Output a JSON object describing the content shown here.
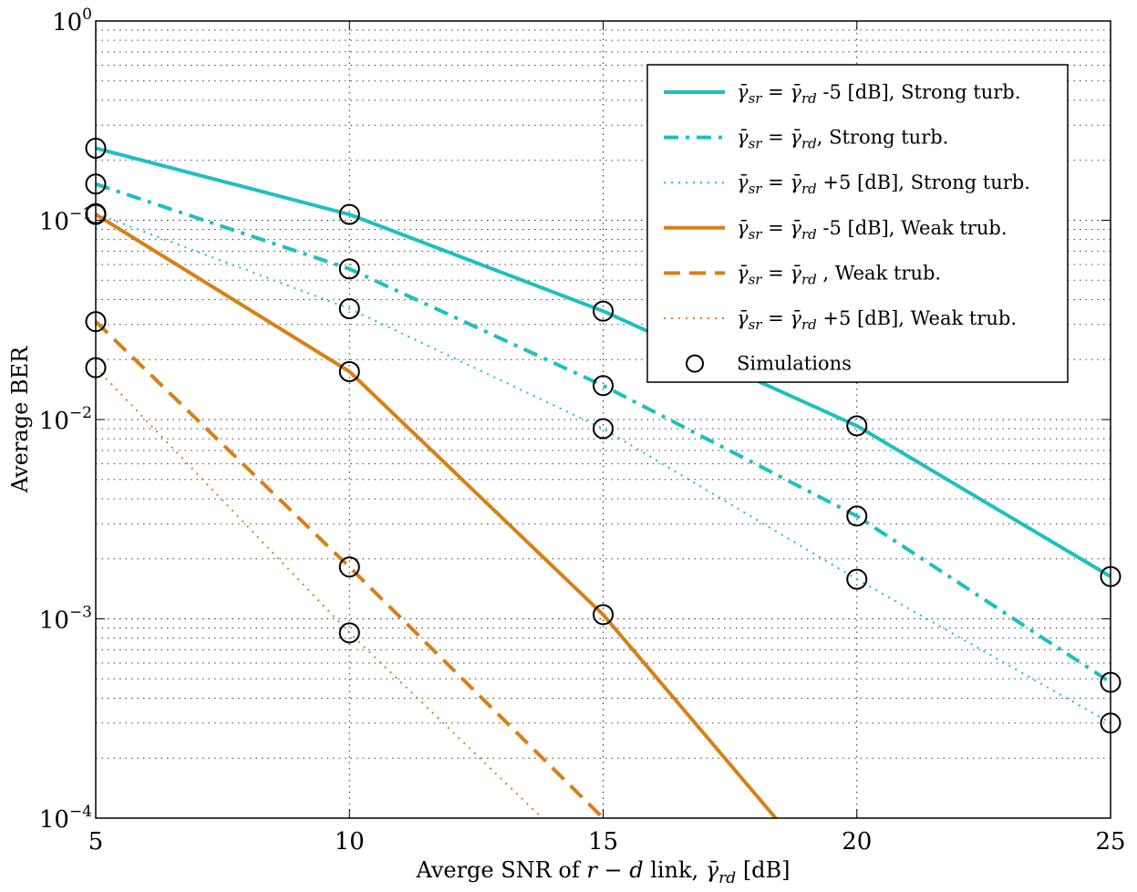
{
  "chart_data": {
    "type": "line",
    "x_scale": "linear",
    "y_scale": "log",
    "xlabel": "Averge SNR of r − d link, γ̄rd [dB]",
    "ylabel": "Average BER",
    "xlim": [
      5,
      25
    ],
    "ylim": [
      0.0001,
      1
    ],
    "x_ticks": [
      5,
      10,
      15,
      20,
      25
    ],
    "y_ticks": [
      {
        "value": 0.0001,
        "base": "10",
        "exp": "−4"
      },
      {
        "value": 0.001,
        "base": "10",
        "exp": "−3"
      },
      {
        "value": 0.01,
        "base": "10",
        "exp": "−2"
      },
      {
        "value": 0.1,
        "base": "10",
        "exp": "−1"
      },
      {
        "value": 1,
        "base": "10",
        "exp": "0"
      }
    ],
    "grid": true,
    "legend_position": "top-right",
    "series": [
      {
        "name": "γ̄sr = γ̄rd -5 [dB], Strong turb.",
        "color": "#1fbfbf",
        "style": "solid",
        "x": [
          5,
          10,
          15,
          20,
          25
        ],
        "y": [
          0.23,
          0.107,
          0.035,
          0.0093,
          0.00163
        ]
      },
      {
        "name": "γ̄sr = γ̄rd, Strong turb.",
        "color": "#1fbfbf",
        "style": "dashdot",
        "x": [
          5,
          10,
          15,
          20,
          25
        ],
        "y": [
          0.152,
          0.057,
          0.0148,
          0.00328,
          0.00048
        ]
      },
      {
        "name": "γ̄sr = γ̄rd +5 [dB], Strong turb.",
        "color": "#1fbfbf",
        "style": "dotted",
        "x": [
          5,
          10,
          15,
          20,
          25
        ],
        "y": [
          0.108,
          0.036,
          0.009,
          0.00158,
          0.0003
        ]
      },
      {
        "name": "γ̄sr = γ̄rd -5 [dB], Weak trub.",
        "color": "#d97f16",
        "style": "solid",
        "x": [
          5,
          10,
          15,
          18.4
        ],
        "y": [
          0.107,
          0.0174,
          0.00105,
          0.0001
        ]
      },
      {
        "name": "γ̄sr = γ̄rd , Weak trub.",
        "color": "#d97f16",
        "style": "dashed",
        "x": [
          5,
          10,
          15
        ],
        "y": [
          0.031,
          0.00182,
          0.0001
        ]
      },
      {
        "name": "γ̄sr = γ̄rd +5 [dB], Weak trub.",
        "color": "#d97f16",
        "style": "dotted",
        "x": [
          5,
          10,
          13.8
        ],
        "y": [
          0.0182,
          0.00085,
          0.0001
        ]
      }
    ],
    "simulations": {
      "name": "Simulations",
      "marker": "circle",
      "points": [
        [
          5,
          0.23
        ],
        [
          5,
          0.152
        ],
        [
          5,
          0.108
        ],
        [
          5,
          0.107
        ],
        [
          5,
          0.031
        ],
        [
          5,
          0.0182
        ],
        [
          10,
          0.107
        ],
        [
          10,
          0.057
        ],
        [
          10,
          0.036
        ],
        [
          10,
          0.0174
        ],
        [
          10,
          0.00182
        ],
        [
          10,
          0.00085
        ],
        [
          15,
          0.035
        ],
        [
          15,
          0.0148
        ],
        [
          15,
          0.009
        ],
        [
          15,
          0.00105
        ],
        [
          20,
          0.0093
        ],
        [
          20,
          0.00328
        ],
        [
          20,
          0.00158
        ],
        [
          25,
          0.00163
        ],
        [
          25,
          0.00048
        ],
        [
          25,
          0.0003
        ]
      ]
    }
  }
}
